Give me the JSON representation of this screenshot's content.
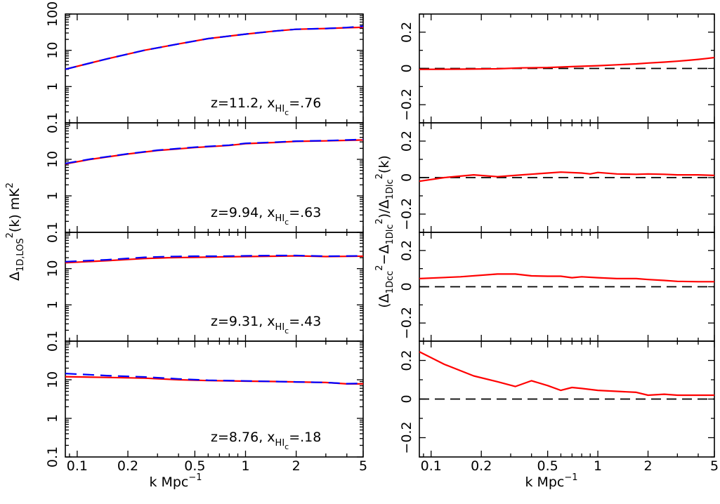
{
  "figure": {
    "xlabel_left": "k Mpc",
    "xlabel_right": "k Mpc",
    "xlabel_exp": "−1",
    "ylabel_left": {
      "main": "Δ",
      "sub": "1D,LOS",
      "sup": "2",
      "after": "(k)  mK",
      "sup2": "2"
    },
    "ylabel_right": {
      "p1": "(Δ",
      "s1": "1Dcc",
      "e1": "2",
      "p2": "−Δ",
      "s2": "1Dlc",
      "e2": "2",
      "p3": ")/Δ",
      "s3": "1Dlc",
      "e3": "2",
      "p4": "(k)"
    }
  },
  "chart_data": [
    {
      "type": "line",
      "panel": "left-1",
      "xscale": "log",
      "yscale": "log",
      "xlim": [
        0.085,
        5
      ],
      "ylim": [
        0.1,
        100
      ],
      "xticks": [
        0.1,
        0.2,
        0.5,
        1,
        2,
        5
      ],
      "xtick_labels": [
        "0.1",
        "0.2",
        "0.5",
        "1",
        "2",
        "5"
      ],
      "yticks": [
        0.1,
        1,
        10,
        100
      ],
      "ytick_labels": [
        "0.1",
        "1",
        "10",
        "100"
      ],
      "annotation": {
        "z": "z=11.2,",
        "x": "x",
        "xsub": "HI",
        "xsubsub": "c",
        "val": "=.76"
      },
      "series": [
        {
          "name": "red solid",
          "color": "#ff0000",
          "dash": "solid",
          "x": [
            0.085,
            0.15,
            0.25,
            0.4,
            0.6,
            1.0,
            1.5,
            2.0,
            3.0,
            4.0,
            5.0
          ],
          "y": [
            3.0,
            5.8,
            10.0,
            15.0,
            21.0,
            28.0,
            34.0,
            38.0,
            40.0,
            42.0,
            43.0
          ]
        },
        {
          "name": "blue dashed",
          "color": "#0000ff",
          "dash": "dashed",
          "x": [
            0.085,
            0.15,
            0.25,
            0.4,
            0.6,
            1.0,
            1.5,
            2.0,
            3.0,
            4.0,
            5.0
          ],
          "y": [
            3.0,
            5.8,
            10.0,
            15.0,
            21.0,
            28.0,
            34.0,
            38.0,
            40.0,
            42.5,
            46.0
          ]
        }
      ]
    },
    {
      "type": "line",
      "panel": "left-2",
      "xscale": "log",
      "yscale": "log",
      "xlim": [
        0.085,
        5
      ],
      "ylim": [
        0.1,
        100
      ],
      "xticks": [
        0.1,
        0.2,
        0.5,
        1,
        2,
        5
      ],
      "xtick_labels": [
        "0.1",
        "0.2",
        "0.5",
        "1",
        "2",
        "5"
      ],
      "yticks": [
        0.1,
        1,
        10
      ],
      "ytick_labels": [
        "0.1",
        "1",
        "10"
      ],
      "annotation": {
        "z": "z=9.94,",
        "x": "x",
        "xsub": "HI",
        "xsubsub": "c",
        "val": "=.63"
      },
      "series": [
        {
          "name": "red solid",
          "color": "#ff0000",
          "dash": "solid",
          "x": [
            0.085,
            0.12,
            0.2,
            0.3,
            0.5,
            0.8,
            1.0,
            1.5,
            2.0,
            3.0,
            5.0
          ],
          "y": [
            7.5,
            10.0,
            14.0,
            17.5,
            21.0,
            24.0,
            27.0,
            29.0,
            31.0,
            32.0,
            34.0
          ]
        },
        {
          "name": "blue dashed",
          "color": "#0000ff",
          "dash": "dashed",
          "x": [
            0.085,
            0.12,
            0.2,
            0.3,
            0.5,
            0.8,
            1.0,
            1.5,
            2.0,
            3.0,
            5.0
          ],
          "y": [
            7.7,
            10.2,
            14.2,
            17.8,
            21.5,
            24.5,
            27.5,
            29.5,
            31.5,
            32.5,
            35.0
          ]
        }
      ]
    },
    {
      "type": "line",
      "panel": "left-3",
      "xscale": "log",
      "yscale": "log",
      "xlim": [
        0.085,
        5
      ],
      "ylim": [
        0.1,
        100
      ],
      "xticks": [
        0.1,
        0.2,
        0.5,
        1,
        2,
        5
      ],
      "xtick_labels": [
        "0.1",
        "0.2",
        "0.5",
        "1",
        "2",
        "5"
      ],
      "yticks": [
        0.1,
        1,
        10
      ],
      "ytick_labels": [
        "0.1",
        "1",
        "10"
      ],
      "annotation": {
        "z": "z=9.31,",
        "x": "x",
        "xsub": "HI",
        "xsubsub": "c",
        "val": "=.43"
      },
      "series": [
        {
          "name": "red solid",
          "color": "#ff0000",
          "dash": "solid",
          "x": [
            0.085,
            0.15,
            0.25,
            0.35,
            0.5,
            0.7,
            1.0,
            1.5,
            2.0,
            3.0,
            5.0
          ],
          "y": [
            14.5,
            16.5,
            19.0,
            20.0,
            20.5,
            21.0,
            21.5,
            22.0,
            22.5,
            21.5,
            22.0
          ]
        },
        {
          "name": "blue dashed",
          "color": "#0000ff",
          "dash": "dashed",
          "x": [
            0.085,
            0.15,
            0.25,
            0.35,
            0.5,
            0.7,
            1.0,
            1.5,
            2.0,
            3.0,
            5.0
          ],
          "y": [
            15.5,
            17.5,
            20.5,
            21.5,
            22.0,
            22.0,
            22.5,
            23.0,
            23.0,
            22.0,
            22.5
          ]
        }
      ]
    },
    {
      "type": "line",
      "panel": "left-4",
      "xscale": "log",
      "yscale": "log",
      "xlim": [
        0.085,
        5
      ],
      "ylim": [
        0.1,
        100
      ],
      "xticks": [
        0.1,
        0.2,
        0.5,
        1,
        2,
        5
      ],
      "xtick_labels": [
        "0.1",
        "0.2",
        "0.5",
        "1",
        "2",
        "5"
      ],
      "yticks": [
        0.1,
        1,
        10
      ],
      "ytick_labels": [
        "0.1",
        "1",
        "10"
      ],
      "annotation": {
        "z": "z=8.76,",
        "x": "x",
        "xsub": "HI",
        "xsubsub": "c",
        "val": "=.18"
      },
      "series": [
        {
          "name": "red solid",
          "color": "#ff0000",
          "dash": "solid",
          "x": [
            0.085,
            0.15,
            0.25,
            0.4,
            0.6,
            1.0,
            1.5,
            2.0,
            3.0,
            4.0,
            5.0
          ],
          "y": [
            12.0,
            11.5,
            11.0,
            10.0,
            9.5,
            9.2,
            9.0,
            8.8,
            8.5,
            7.8,
            7.8
          ]
        },
        {
          "name": "blue dashed",
          "color": "#0000ff",
          "dash": "dashed",
          "x": [
            0.085,
            0.15,
            0.25,
            0.4,
            0.6,
            1.0,
            1.5,
            2.0,
            3.0,
            4.0,
            5.0
          ],
          "y": [
            14.5,
            12.8,
            11.8,
            10.5,
            9.7,
            9.3,
            9.0,
            8.8,
            8.5,
            7.9,
            8.0
          ]
        }
      ]
    },
    {
      "type": "line",
      "panel": "right-1",
      "xscale": "log",
      "yscale": "linear",
      "xlim": [
        0.085,
        5
      ],
      "ylim": [
        -0.3,
        0.3
      ],
      "xticks": [
        0.1,
        0.2,
        0.5,
        1,
        2,
        5
      ],
      "xtick_labels": [
        "0.1",
        "0.2",
        "0.5",
        "1",
        "2",
        "5"
      ],
      "yticks": [
        -0.2,
        0,
        0.2
      ],
      "ytick_labels": [
        "−0.2",
        "0",
        "0.2"
      ],
      "reference_line": 0,
      "series": [
        {
          "name": "ratio",
          "color": "#ff0000",
          "dash": "solid",
          "x": [
            0.085,
            0.15,
            0.25,
            0.35,
            0.5,
            0.7,
            1.0,
            1.3,
            1.7,
            2.0,
            2.5,
            3.0,
            3.5,
            4.0,
            4.5,
            5.0
          ],
          "y": [
            -0.005,
            -0.004,
            -0.002,
            0.003,
            0.005,
            0.01,
            0.015,
            0.02,
            0.025,
            0.03,
            0.035,
            0.04,
            0.045,
            0.05,
            0.055,
            0.06
          ]
        }
      ]
    },
    {
      "type": "line",
      "panel": "right-2",
      "xscale": "log",
      "yscale": "linear",
      "xlim": [
        0.085,
        5
      ],
      "ylim": [
        -0.3,
        0.3
      ],
      "xticks": [
        0.1,
        0.2,
        0.5,
        1,
        2,
        5
      ],
      "xtick_labels": [
        "0.1",
        "0.2",
        "0.5",
        "1",
        "2",
        "5"
      ],
      "yticks": [
        -0.2,
        0,
        0.2
      ],
      "ytick_labels": [
        "−0.2",
        "0",
        "0.2"
      ],
      "reference_line": 0,
      "series": [
        {
          "name": "ratio",
          "color": "#ff0000",
          "dash": "solid",
          "x": [
            0.085,
            0.12,
            0.18,
            0.25,
            0.35,
            0.5,
            0.6,
            0.8,
            0.9,
            1.0,
            1.3,
            1.7,
            2.0,
            2.5,
            3.0,
            4.0,
            5.0
          ],
          "y": [
            -0.02,
            0.0,
            0.015,
            0.005,
            0.015,
            0.025,
            0.03,
            0.025,
            0.02,
            0.028,
            0.02,
            0.018,
            0.02,
            0.018,
            0.015,
            0.015,
            0.012
          ]
        }
      ]
    },
    {
      "type": "line",
      "panel": "right-3",
      "xscale": "log",
      "yscale": "linear",
      "xlim": [
        0.085,
        5
      ],
      "ylim": [
        -0.3,
        0.3
      ],
      "xticks": [
        0.1,
        0.2,
        0.5,
        1,
        2,
        5
      ],
      "xtick_labels": [
        "0.1",
        "0.2",
        "0.5",
        "1",
        "2",
        "5"
      ],
      "yticks": [
        -0.2,
        0,
        0.2
      ],
      "ytick_labels": [
        "−0.2",
        "0",
        "0.2"
      ],
      "reference_line": 0,
      "series": [
        {
          "name": "ratio",
          "color": "#ff0000",
          "dash": "solid",
          "x": [
            0.085,
            0.15,
            0.25,
            0.32,
            0.4,
            0.5,
            0.6,
            0.7,
            0.8,
            1.0,
            1.3,
            1.7,
            2.0,
            2.5,
            3.0,
            4.0,
            5.0
          ],
          "y": [
            0.045,
            0.055,
            0.07,
            0.07,
            0.06,
            0.058,
            0.058,
            0.05,
            0.055,
            0.05,
            0.045,
            0.045,
            0.04,
            0.035,
            0.03,
            0.028,
            0.028
          ]
        }
      ]
    },
    {
      "type": "line",
      "panel": "right-4",
      "xscale": "log",
      "yscale": "linear",
      "xlim": [
        0.085,
        5
      ],
      "ylim": [
        -0.3,
        0.3
      ],
      "xticks": [
        0.1,
        0.2,
        0.5,
        1,
        2,
        5
      ],
      "xtick_labels": [
        "0.1",
        "0.2",
        "0.5",
        "1",
        "2",
        "5"
      ],
      "yticks": [
        -0.2,
        0,
        0.2
      ],
      "ytick_labels": [
        "−0.2",
        "0",
        "0.2"
      ],
      "reference_line": 0,
      "series": [
        {
          "name": "ratio",
          "color": "#ff0000",
          "dash": "solid",
          "x": [
            0.085,
            0.12,
            0.18,
            0.25,
            0.32,
            0.4,
            0.5,
            0.6,
            0.7,
            0.8,
            1.0,
            1.3,
            1.7,
            2.0,
            2.5,
            3.0,
            4.0,
            5.0
          ],
          "y": [
            0.245,
            0.18,
            0.12,
            0.09,
            0.065,
            0.095,
            0.07,
            0.045,
            0.06,
            0.055,
            0.045,
            0.04,
            0.035,
            0.02,
            0.025,
            0.02,
            0.02,
            0.02
          ]
        }
      ]
    }
  ]
}
